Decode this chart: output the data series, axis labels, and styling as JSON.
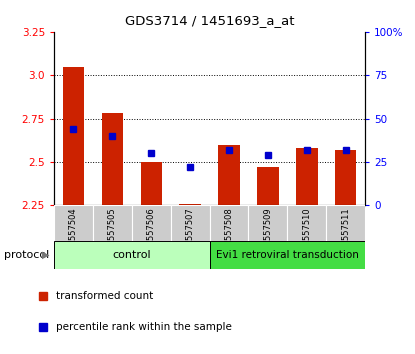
{
  "title": "GDS3714 / 1451693_a_at",
  "categories": [
    "GSM557504",
    "GSM557505",
    "GSM557506",
    "GSM557507",
    "GSM557508",
    "GSM557509",
    "GSM557510",
    "GSM557511"
  ],
  "red_values": [
    3.05,
    2.78,
    2.5,
    2.26,
    2.6,
    2.47,
    2.58,
    2.57
  ],
  "red_base": 2.25,
  "blue_values": [
    44,
    40,
    30,
    22,
    32,
    29,
    32,
    32
  ],
  "ylim_left": [
    2.25,
    3.25
  ],
  "ylim_right": [
    0,
    100
  ],
  "yticks_left": [
    2.25,
    2.5,
    2.75,
    3.0,
    3.25
  ],
  "yticks_right": [
    0,
    25,
    50,
    75,
    100
  ],
  "ytick_labels_right": [
    "0",
    "25",
    "50",
    "75",
    "100%"
  ],
  "grid_values": [
    2.5,
    2.75,
    3.0
  ],
  "bar_color": "#cc2200",
  "dot_color": "#0000cc",
  "control_color": "#bbffbb",
  "treatment_color": "#44dd44",
  "xlabel_bg": "#cccccc",
  "control_label": "control",
  "treatment_label": "Evi1 retroviral transduction",
  "protocol_label": "protocol",
  "legend_red": "transformed count",
  "legend_blue": "percentile rank within the sample",
  "n_control": 4,
  "n_treatment": 4
}
